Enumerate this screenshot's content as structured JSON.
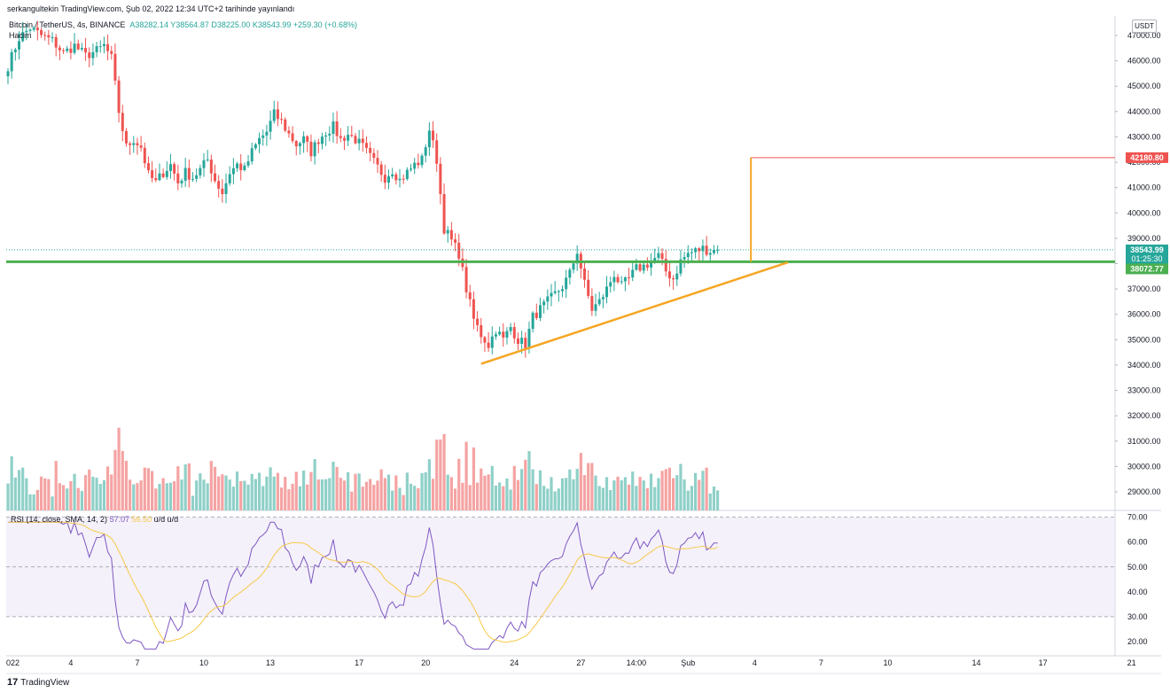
{
  "header": {
    "published_by": "serkangultekin TradingView.com, Şub 02, 2022 12:34 UTC+2 tarihinde yayınlandı",
    "symbol": "Bitcoin / TetherUS, 4s, BINANCE",
    "ohlc": "A38282.14  Y38564.87  D38225.00  K38543.99  +259.30 (+0.68%)",
    "volume_label": "Hacim",
    "currency": "USDT"
  },
  "rsi": {
    "label": "RSI (14, close, SMA, 14, 2)",
    "value": "57.07",
    "sma_value": "56.50",
    "extra": "u/d u/d"
  },
  "footer": {
    "brand": "TradingView",
    "logo": "17"
  },
  "colors": {
    "up": "#26a69a",
    "down": "#ef5350",
    "up_vol": "#8fd0c8",
    "down_vol": "#f5a3a3",
    "support": "#4caf50",
    "trend": "#f5a623",
    "target": "#ef5350",
    "rsi_line": "#7e57c2",
    "rsi_sma": "#f7c948",
    "rsi_band": "#ede7f6"
  },
  "chart_data": {
    "type": "candlestick",
    "ylim": [
      28300,
      47700
    ],
    "y_ticks": [
      29000,
      30000,
      31000,
      32000,
      33000,
      34000,
      35000,
      36000,
      37000,
      38000,
      39000,
      40000,
      41000,
      42000,
      43000,
      44000,
      45000,
      46000,
      47000
    ],
    "y_tick_labels": [
      "29000.00",
      "30000.00",
      "31000.00",
      "32000.00",
      "33000.00",
      "34000.00",
      "35000.00",
      "36000.00",
      "37000.00",
      "38000.00",
      "39000.00",
      "40000.00",
      "41000.00",
      "42000.00",
      "43000.00",
      "44000.00",
      "45000.00",
      "46000.00",
      "47000.00"
    ],
    "x_ticks": [
      {
        "label": "022",
        "bar": 0
      },
      {
        "label": "4",
        "bar": 17
      },
      {
        "label": "7",
        "bar": 35
      },
      {
        "label": "10",
        "bar": 53
      },
      {
        "label": "13",
        "bar": 71
      },
      {
        "label": "17",
        "bar": 95
      },
      {
        "label": "20",
        "bar": 113
      },
      {
        "label": "24",
        "bar": 137
      },
      {
        "label": "27",
        "bar": 155
      },
      {
        "label": "14:00",
        "bar": 170
      },
      {
        "label": "Şub",
        "bar": 184
      },
      {
        "label": "4",
        "bar": 202
      },
      {
        "label": "7",
        "bar": 220
      },
      {
        "label": "10",
        "bar": 238
      },
      {
        "label": "14",
        "bar": 262
      },
      {
        "label": "17",
        "bar": 280
      },
      {
        "label": "21",
        "bar": 304
      }
    ],
    "waypoints_close": [
      [
        0,
        45800
      ],
      [
        3,
        46900
      ],
      [
        6,
        47300
      ],
      [
        9,
        47000
      ],
      [
        12,
        46800
      ],
      [
        15,
        46300
      ],
      [
        18,
        46600
      ],
      [
        21,
        46200
      ],
      [
        24,
        46400
      ],
      [
        26,
        46600
      ],
      [
        28,
        46100
      ],
      [
        30,
        44000
      ],
      [
        32,
        42600
      ],
      [
        34,
        42900
      ],
      [
        36,
        42600
      ],
      [
        38,
        41500
      ],
      [
        40,
        41200
      ],
      [
        42,
        41600
      ],
      [
        44,
        41900
      ],
      [
        46,
        41200
      ],
      [
        48,
        41600
      ],
      [
        50,
        41400
      ],
      [
        52,
        41700
      ],
      [
        54,
        42100
      ],
      [
        56,
        41300
      ],
      [
        58,
        40800
      ],
      [
        60,
        41600
      ],
      [
        62,
        41900
      ],
      [
        64,
        41700
      ],
      [
        66,
        42400
      ],
      [
        68,
        42900
      ],
      [
        70,
        43200
      ],
      [
        72,
        43900
      ],
      [
        74,
        43600
      ],
      [
        76,
        43100
      ],
      [
        78,
        42700
      ],
      [
        80,
        42900
      ],
      [
        82,
        42400
      ],
      [
        84,
        42900
      ],
      [
        86,
        43200
      ],
      [
        88,
        43400
      ],
      [
        90,
        42900
      ],
      [
        92,
        43100
      ],
      [
        94,
        42900
      ],
      [
        96,
        42600
      ],
      [
        98,
        42200
      ],
      [
        100,
        41800
      ],
      [
        102,
        41400
      ],
      [
        104,
        41700
      ],
      [
        106,
        41300
      ],
      [
        108,
        41600
      ],
      [
        110,
        41900
      ],
      [
        112,
        42100
      ],
      [
        114,
        43300
      ],
      [
        116,
        42100
      ],
      [
        118,
        39400
      ],
      [
        120,
        38900
      ],
      [
        122,
        38400
      ],
      [
        124,
        37000
      ],
      [
        126,
        35800
      ],
      [
        128,
        35200
      ],
      [
        130,
        34800
      ],
      [
        132,
        35400
      ],
      [
        134,
        35000
      ],
      [
        136,
        35500
      ],
      [
        138,
        35000
      ],
      [
        140,
        34800
      ],
      [
        142,
        35900
      ],
      [
        144,
        36200
      ],
      [
        146,
        36500
      ],
      [
        148,
        36800
      ],
      [
        150,
        37100
      ],
      [
        152,
        37600
      ],
      [
        154,
        38500
      ],
      [
        156,
        37200
      ],
      [
        158,
        36200
      ],
      [
        160,
        36500
      ],
      [
        162,
        37000
      ],
      [
        164,
        37600
      ],
      [
        166,
        37100
      ],
      [
        168,
        37400
      ],
      [
        170,
        37800
      ],
      [
        172,
        37900
      ],
      [
        174,
        38100
      ],
      [
        176,
        38300
      ],
      [
        178,
        37700
      ],
      [
        180,
        37400
      ],
      [
        182,
        38100
      ],
      [
        184,
        38400
      ],
      [
        186,
        38500
      ],
      [
        188,
        38600
      ],
      [
        190,
        38500
      ],
      [
        192,
        38550
      ]
    ],
    "last_price": 38543.99,
    "last_price_label": "38543.99",
    "countdown_label": "01:25:30",
    "support_level": 38072.77,
    "support_label": "38072.77",
    "target_level": 42180.8,
    "target_label": "42180.80",
    "trendline": {
      "from": {
        "bar": 128,
        "price": 34050
      },
      "to": {
        "bar": 211,
        "price": 38050
      }
    },
    "target_projection": {
      "bar": 201,
      "from_price": 38072.77,
      "to_price": 42180.8
    },
    "rsi_ylim": [
      15,
      72
    ],
    "rsi_ticks": [
      20,
      30,
      40,
      50,
      60,
      70
    ],
    "rsi_tick_labels": [
      "20.00",
      "30.00",
      "40.00",
      "50.00",
      "60.00",
      "70.00"
    ],
    "rsi_band": [
      30,
      70
    ]
  }
}
